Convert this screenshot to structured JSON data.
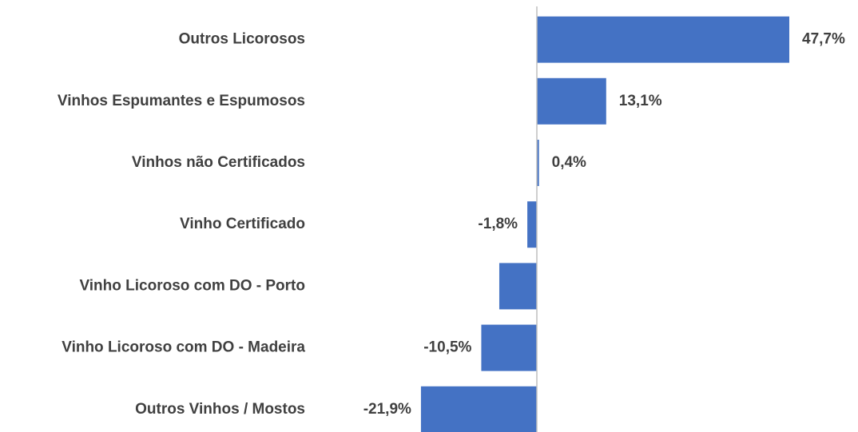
{
  "chart_data": {
    "type": "bar",
    "orientation": "horizontal",
    "categories": [
      "Outros Licorosos",
      "Vinhos Espumantes e Espumosos",
      "Vinhos não Certificados",
      "Vinho Certificado",
      "Vinho Licoroso com DO - Porto",
      "Vinho Licoroso com DO - Madeira",
      "Outros Vinhos / Mostos"
    ],
    "values": [
      47.7,
      13.1,
      0.4,
      -1.8,
      -7.1,
      -10.5,
      -21.9
    ],
    "value_labels": [
      "47,7%",
      "13,1%",
      "0,4%",
      "-1,8%",
      null,
      "-10,5%",
      "-21,9%"
    ],
    "color": "#4472c4"
  }
}
